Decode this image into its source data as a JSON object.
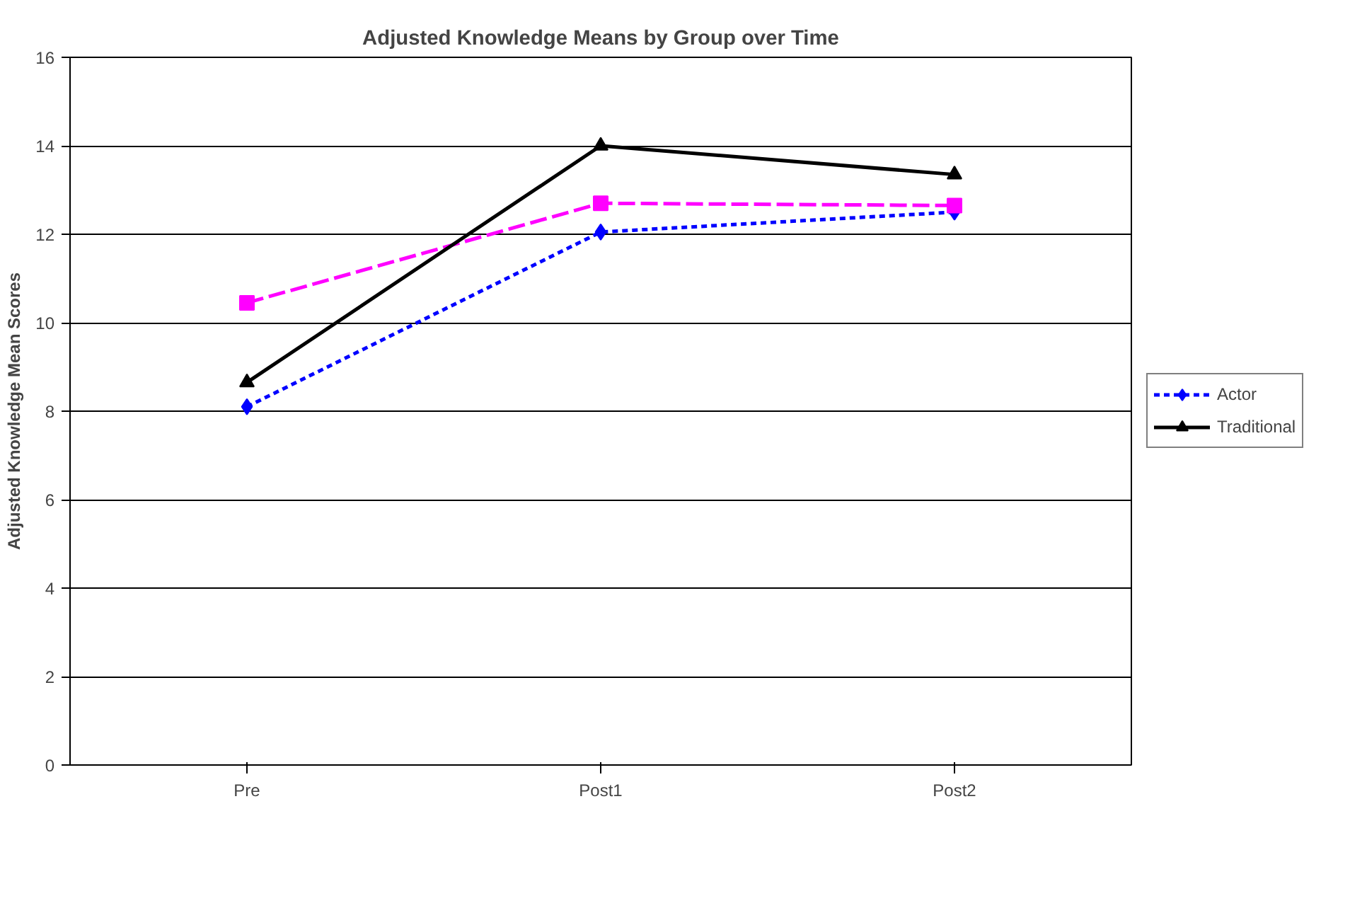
{
  "chart_data": {
    "type": "line",
    "title": "Adjusted Knowledge Means by Group over Time",
    "ylabel": "Adjusted Knowledge Mean Scores",
    "categories": [
      "Pre",
      "Post1",
      "Post2"
    ],
    "ylim": [
      0,
      16
    ],
    "yticks": [
      0,
      2,
      4,
      6,
      8,
      10,
      12,
      14,
      16
    ],
    "grid": "y",
    "legend": "right",
    "series": [
      {
        "name": "Actor",
        "color": "#0000ff",
        "values": [
          8.1,
          12.05,
          12.5
        ],
        "marker": "diamond",
        "line_style": "dotted"
      },
      {
        "color": "#ff00ff",
        "values": [
          10.45,
          12.7,
          12.65
        ],
        "marker": "square",
        "line_style": "dashed"
      },
      {
        "name": "Traditional",
        "color": "#000000",
        "values": [
          8.65,
          14.0,
          13.35
        ],
        "marker": "triangle",
        "line_style": "solid"
      }
    ]
  }
}
